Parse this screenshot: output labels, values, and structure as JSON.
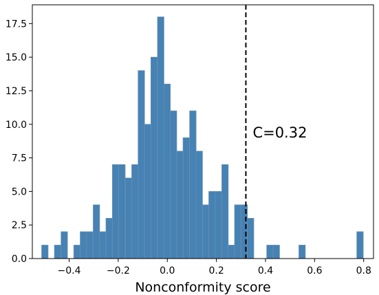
{
  "chart_data": {
    "type": "bar",
    "subtype": "histogram",
    "xlabel": "Nonconformity score",
    "ylabel": "",
    "xlim": [
      -0.55,
      0.84
    ],
    "ylim": [
      0,
      18.9
    ],
    "x_ticks": [
      -0.4,
      -0.2,
      0.0,
      0.2,
      0.4,
      0.6,
      0.8
    ],
    "x_tick_labels": [
      "−0.4",
      "−0.2",
      "0.0",
      "0.2",
      "0.4",
      "0.6",
      "0.8"
    ],
    "y_ticks": [
      0,
      2.5,
      5,
      7.5,
      10,
      12.5,
      15,
      17.5
    ],
    "y_tick_labels": [
      "0.0",
      "2.5",
      "5.0",
      "7.5",
      "10.0",
      "12.5",
      "15.0",
      "17.5"
    ],
    "grid": false,
    "bin_width": 0.0262,
    "bins": [
      {
        "left": -0.512,
        "count": 1
      },
      {
        "left": -0.486,
        "count": 0
      },
      {
        "left": -0.46,
        "count": 1
      },
      {
        "left": -0.433,
        "count": 2
      },
      {
        "left": -0.407,
        "count": 0
      },
      {
        "left": -0.381,
        "count": 1
      },
      {
        "left": -0.355,
        "count": 2
      },
      {
        "left": -0.329,
        "count": 2
      },
      {
        "left": -0.302,
        "count": 4
      },
      {
        "left": -0.276,
        "count": 2
      },
      {
        "left": -0.25,
        "count": 3
      },
      {
        "left": -0.224,
        "count": 7
      },
      {
        "left": -0.198,
        "count": 7
      },
      {
        "left": -0.171,
        "count": 6
      },
      {
        "left": -0.145,
        "count": 7
      },
      {
        "left": -0.119,
        "count": 14
      },
      {
        "left": -0.093,
        "count": 10
      },
      {
        "left": -0.067,
        "count": 15
      },
      {
        "left": -0.04,
        "count": 18
      },
      {
        "left": -0.014,
        "count": 13
      },
      {
        "left": 0.012,
        "count": 11
      },
      {
        "left": 0.038,
        "count": 8
      },
      {
        "left": 0.064,
        "count": 9
      },
      {
        "left": 0.091,
        "count": 11
      },
      {
        "left": 0.117,
        "count": 8
      },
      {
        "left": 0.143,
        "count": 4
      },
      {
        "left": 0.169,
        "count": 5
      },
      {
        "left": 0.195,
        "count": 5
      },
      {
        "left": 0.222,
        "count": 7
      },
      {
        "left": 0.248,
        "count": 1
      },
      {
        "left": 0.274,
        "count": 4
      },
      {
        "left": 0.3,
        "count": 4
      },
      {
        "left": 0.326,
        "count": 3
      },
      {
        "left": 0.353,
        "count": 0
      },
      {
        "left": 0.379,
        "count": 0
      },
      {
        "left": 0.405,
        "count": 1
      },
      {
        "left": 0.431,
        "count": 1
      },
      {
        "left": 0.457,
        "count": 0
      },
      {
        "left": 0.484,
        "count": 0
      },
      {
        "left": 0.51,
        "count": 0
      },
      {
        "left": 0.536,
        "count": 1
      },
      {
        "left": 0.562,
        "count": 0
      },
      {
        "left": 0.588,
        "count": 0
      },
      {
        "left": 0.615,
        "count": 0
      },
      {
        "left": 0.641,
        "count": 0
      },
      {
        "left": 0.667,
        "count": 0
      },
      {
        "left": 0.693,
        "count": 0
      },
      {
        "left": 0.719,
        "count": 0
      },
      {
        "left": 0.746,
        "count": 0
      },
      {
        "left": 0.772,
        "count": 2
      }
    ],
    "threshold": {
      "x": 0.32,
      "label": "C=0.32",
      "style": "dashed",
      "color": "#000000"
    },
    "colors": {
      "bar_fill": "#4682b4",
      "bar_edge": "#6a8fb0"
    }
  }
}
